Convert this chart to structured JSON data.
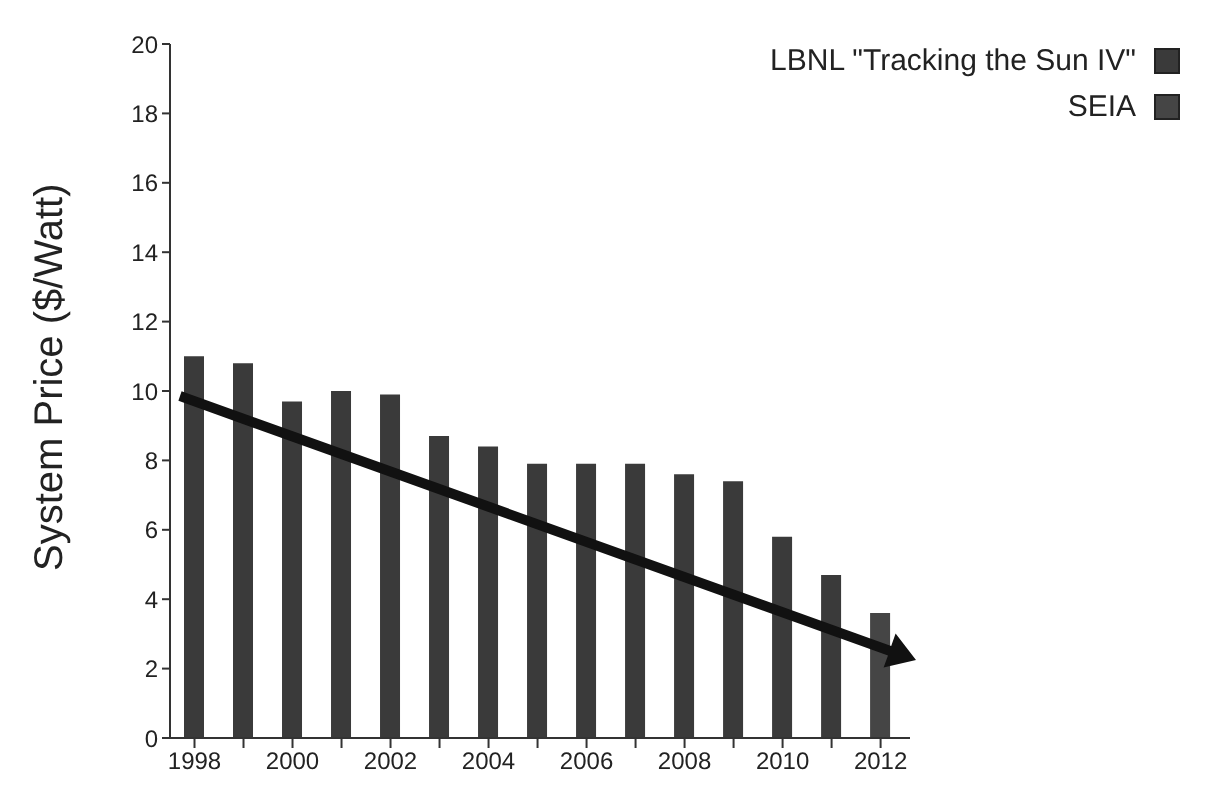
{
  "chart_data": {
    "type": "bar",
    "ylabel": "System Price ($/Watt)",
    "xlim": [
      1997.5,
      2012.6
    ],
    "xticks": [
      1998,
      {
        "value": 1999,
        "label": null
      },
      2000,
      {
        "value": 2001,
        "label": null
      },
      2002,
      {
        "value": 2003,
        "label": null
      },
      2004,
      {
        "value": 2005,
        "label": null
      },
      2006,
      {
        "value": 2007,
        "label": null
      },
      2008,
      {
        "value": 2009,
        "label": null
      },
      2010,
      {
        "value": 2011,
        "label": null
      },
      2012
    ],
    "ylim": [
      0,
      20
    ],
    "yticks": [
      0,
      2,
      4,
      6,
      8,
      10,
      12,
      14,
      16,
      18,
      20
    ],
    "legend": "top right",
    "series": [
      {
        "name": "LBNL \"Tracking the Sun IV\"",
        "color": "#3a3a3a",
        "x": [
          1998,
          1999,
          2000,
          2001,
          2002,
          2003,
          2004,
          2005,
          2006,
          2007,
          2008,
          2009,
          2010,
          2011
        ],
        "values": [
          11.0,
          10.8,
          9.7,
          10.0,
          9.9,
          8.7,
          8.4,
          7.9,
          7.9,
          7.9,
          7.6,
          7.4,
          5.8,
          4.7
        ]
      },
      {
        "name": "SEIA",
        "color": "#454545",
        "x": [
          2012
        ],
        "values": [
          3.6
        ]
      }
    ]
  }
}
